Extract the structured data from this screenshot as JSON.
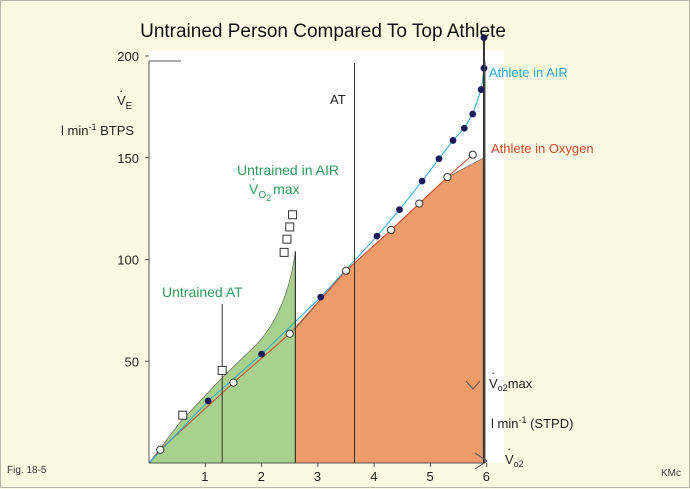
{
  "chart_data": {
    "type": "line",
    "title": "Untrained Person Compared To Top Athlete",
    "fig_label": "Fig. 18-5",
    "credit": "KMc",
    "ylabel_symbol": "V",
    "ylabel_subscript": "E",
    "ylabel_units": "l min",
    "ylabel_units_sup": "-1",
    "ylabel_units_tail": " BTPS",
    "xlabel_symbol": "V",
    "xlabel_subscript": "o2",
    "xlabel_max": "max",
    "xlabel_units": "l min",
    "xlabel_units_sup": "-1",
    "xlabel_units_tail": " (STPD)",
    "x_ticks": [
      1,
      2,
      3,
      4,
      5,
      6
    ],
    "y_ticks": [
      50,
      100,
      150,
      200
    ],
    "xlim": [
      0,
      6.2
    ],
    "ylim": [
      0,
      200
    ],
    "series": [
      {
        "name": "Athlete in AIR",
        "color": "#29a9e0",
        "marker": "filled-circle",
        "points": [
          [
            1.05,
            30.5
          ],
          [
            2.0,
            53.5
          ],
          [
            3.05,
            81.5
          ],
          [
            4.05,
            111.5
          ],
          [
            4.45,
            124.5
          ],
          [
            4.85,
            138.5
          ],
          [
            5.15,
            149.5
          ],
          [
            5.4,
            158.5
          ],
          [
            5.6,
            164.5
          ],
          [
            5.75,
            171.5
          ],
          [
            5.9,
            183.5
          ],
          [
            5.95,
            194
          ],
          [
            5.95,
            209
          ]
        ]
      },
      {
        "name": "Athlete in Oxygen",
        "color": "#d04a2a",
        "marker": "open-circle",
        "points": [
          [
            0.2,
            6.5
          ],
          [
            1.5,
            39.5
          ],
          [
            2.5,
            63.5
          ],
          [
            3.5,
            94.5
          ],
          [
            4.3,
            114.5
          ],
          [
            4.8,
            127.5
          ],
          [
            5.3,
            140.5
          ],
          [
            5.75,
            151.5
          ]
        ]
      },
      {
        "name": "Untrained in AIR",
        "color": "#2a9a5a",
        "marker": "open-square",
        "points": [
          [
            0.6,
            23.5
          ],
          [
            1.3,
            45.5
          ],
          [
            2.4,
            103.5
          ],
          [
            2.45,
            110
          ],
          [
            2.5,
            116
          ],
          [
            2.55,
            122
          ]
        ]
      }
    ],
    "annotations": {
      "untrained_vo2max_line1": "Untrained in AIR",
      "untrained_vo2max_symbol": "V",
      "untrained_vo2max_subscript": "O",
      "untrained_vo2max_subscript2": "2",
      "untrained_vo2max_tail": "max",
      "untrained_at": "Untrained AT",
      "untrained_at_x": 1.3,
      "athlete_at": "AT",
      "athlete_at_x": 3.65,
      "untrained_vo2max_x": 2.6,
      "athlete_vo2max_x": 5.95
    },
    "colors": {
      "untrained_fill": "#a9d18e",
      "athlete_fill": "#ef9b6a",
      "plot_bg": "#ffffff",
      "page_bg": "#fcfae2",
      "untrained_label": "#2a9a5a",
      "air_label": "#29a9e0",
      "oxygen_label": "#d04a2a",
      "marker_fill": "#1a1a5a"
    }
  }
}
